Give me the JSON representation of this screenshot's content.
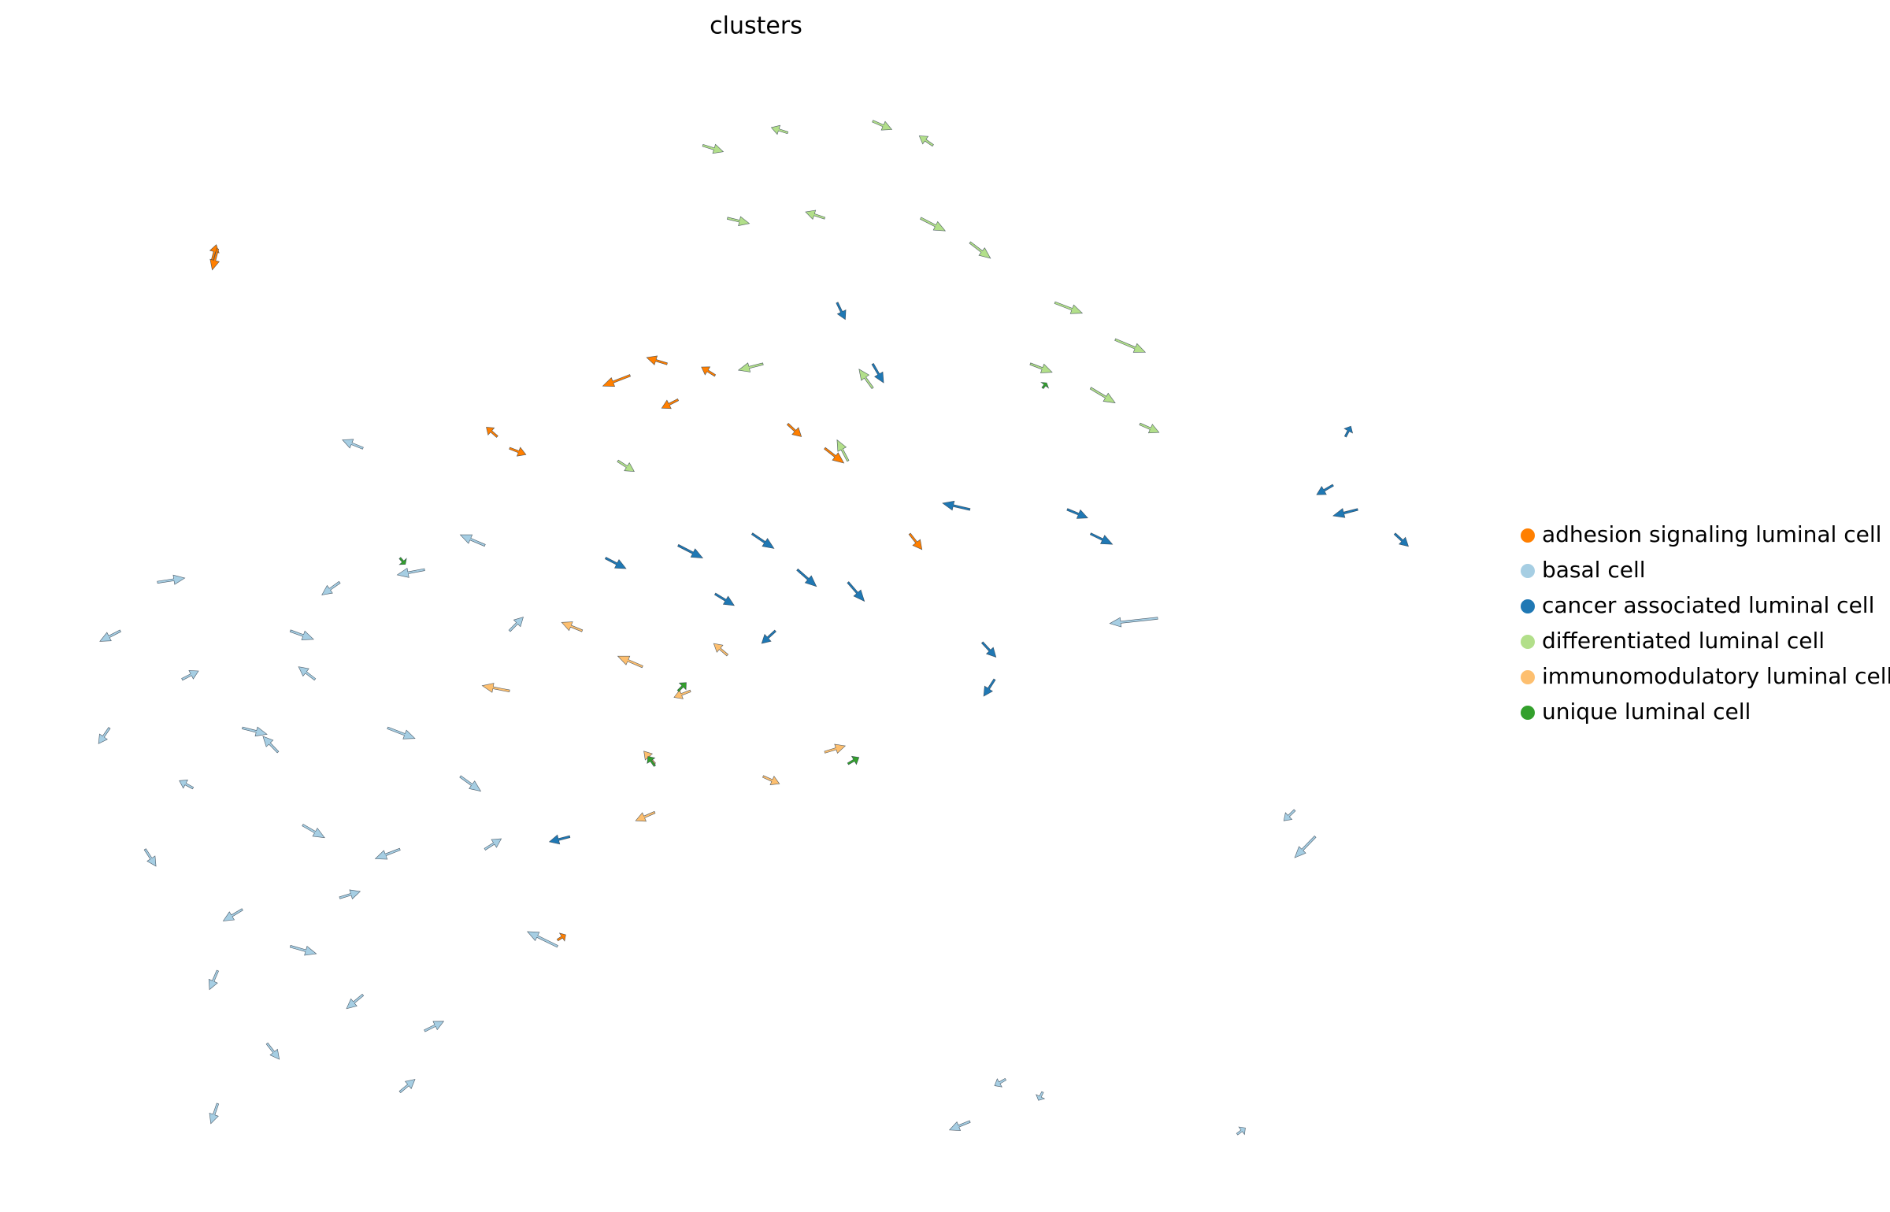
{
  "chart_data": {
    "type": "quiver",
    "title": "clusters",
    "xlim": [
      0,
      100
    ],
    "ylim": [
      0,
      100
    ],
    "legend": "right",
    "series": [
      {
        "name": "adhesion signaling luminal cell",
        "color": "#ff7f00",
        "x": [
          10.2,
          10.6,
          40.7,
          43.4,
          44.2,
          31.0,
          31.9,
          52.2,
          54.9,
          61.1,
          35.4,
          46.9
        ],
        "y": [
          84.5,
          85.6,
          73.6,
          74.7,
          71.3,
          67.8,
          66.7,
          69.0,
          66.7,
          58.6,
          20.1,
          73.6
        ],
        "dx": [
          0.3,
          -0.4,
          -2.0,
          -1.5,
          -1.2,
          -0.8,
          1.2,
          1.0,
          1.4,
          0.9,
          0.6,
          -1.0
        ],
        "dy": [
          1.5,
          -2.0,
          -1.0,
          0.6,
          -0.8,
          0.9,
          -0.6,
          -1.2,
          -1.4,
          -1.5,
          0.5,
          0.8
        ]
      },
      {
        "name": "basal cell",
        "color": "#a6cee3",
        "x": [
          3.5,
          8.0,
          2.7,
          12.4,
          17.7,
          23.0,
          28.3,
          8.8,
          16.8,
          23.9,
          30.1,
          5.3,
          12.4,
          19.5,
          10.6,
          15.9,
          21.2,
          25.7,
          14.2,
          10.6,
          23.9,
          35.4,
          21.2,
          25.7,
          30.1,
          31.9,
          6.2,
          19.5,
          15.9,
          15.0,
          79.2,
          90.7,
          89.2,
          65.5,
          68.1,
          85.0,
          70.8
        ],
        "y": [
          49.4,
          44.8,
          40.2,
          40.2,
          44.8,
          40.2,
          35.6,
          34.5,
          31.0,
          28.7,
          28.7,
          28.7,
          23.0,
          24.1,
          17.2,
          19.5,
          14.9,
          11.5,
          10.3,
          4.6,
          5.7,
          19.5,
          66.7,
          55.2,
          57.5,
          49.4,
          54.0,
          54.0,
          49.4,
          37.9,
          50.6,
          29.9,
          32.4,
          2.9,
          6.9,
          1.7,
          5.7
        ],
        "dx": [
          -1.5,
          1.2,
          -0.8,
          1.8,
          -1.2,
          2.0,
          1.5,
          -1.0,
          1.6,
          -1.8,
          1.2,
          0.8,
          -1.4,
          1.5,
          -0.6,
          1.9,
          -1.2,
          1.4,
          0.9,
          -0.5,
          1.1,
          -2.2,
          -1.5,
          -2.0,
          -1.8,
          1.0,
          2.0,
          -1.3,
          1.7,
          -1.1,
          -3.5,
          -1.5,
          -0.8,
          -1.5,
          -0.8,
          0.6,
          -0.3
        ],
        "dy": [
          -1.0,
          0.8,
          -1.5,
          -0.6,
          1.2,
          -1.0,
          -1.4,
          0.7,
          -1.2,
          -0.9,
          1.0,
          -1.6,
          -1.1,
          0.6,
          -1.8,
          -0.7,
          -1.3,
          0.9,
          -1.5,
          -1.9,
          1.2,
          1.4,
          0.8,
          -0.5,
          1.0,
          1.3,
          0.4,
          -1.2,
          -0.8,
          1.5,
          -0.5,
          -2.0,
          -1.0,
          -0.8,
          -0.6,
          0.6,
          -0.8
        ]
      },
      {
        "name": "cancer associated luminal cell",
        "color": "#1f78b4",
        "x": [
          38.9,
          44.2,
          49.6,
          52.9,
          56.6,
          51.3,
          55.8,
          58.4,
          65.5,
          72.6,
          74.3,
          66.4,
          67.3,
          92.9,
          93.8,
          96.5,
          92.0,
          36.3,
          46.9
        ],
        "y": [
          56.3,
          57.5,
          58.6,
          55.2,
          54.0,
          49.4,
          80.5,
          74.7,
          60.9,
          60.9,
          58.6,
          48.3,
          44.8,
          67.8,
          60.9,
          58.6,
          63.2,
          29.9,
          52.9
        ],
        "dx": [
          1.5,
          1.8,
          1.6,
          1.4,
          1.2,
          -1.0,
          0.6,
          0.8,
          -2.0,
          1.5,
          1.6,
          1.0,
          -0.8,
          0.4,
          -1.8,
          1.0,
          -1.2,
          -1.5,
          1.4
        ],
        "dy": [
          -1.0,
          -1.2,
          -1.4,
          -1.6,
          -1.8,
          -1.2,
          -1.6,
          -1.8,
          0.6,
          -0.8,
          -1.0,
          -1.4,
          -1.6,
          1.0,
          -0.6,
          -1.2,
          -0.9,
          -0.5,
          -1.1
        ]
      },
      {
        "name": "differentiated luminal cell",
        "color": "#b2df8a",
        "x": [
          46.0,
          52.2,
          58.4,
          62.8,
          47.8,
          54.9,
          61.9,
          65.5,
          71.7,
          76.1,
          74.3,
          69.9,
          58.4,
          56.6,
          39.8,
          50.4,
          77.9
        ],
        "y": [
          95.4,
          96.6,
          97.7,
          95.4,
          88.5,
          88.5,
          88.5,
          86.2,
          80.5,
          77.0,
          72.4,
          74.7,
          72.4,
          65.5,
          65.5,
          74.7,
          69.0
        ],
        "dx": [
          1.5,
          -1.2,
          1.4,
          -1.0,
          1.6,
          -1.4,
          1.8,
          1.5,
          2.0,
          2.2,
          1.8,
          1.6,
          -1.0,
          -0.8,
          1.2,
          -1.8,
          1.4
        ],
        "dy": [
          -0.6,
          0.5,
          -0.8,
          0.9,
          -0.5,
          0.6,
          -1.2,
          -1.5,
          -1.0,
          -1.2,
          -1.4,
          -0.8,
          1.8,
          2.0,
          -1.0,
          -0.6,
          -0.8
        ]
      },
      {
        "name": "immunomodulatory luminal cell",
        "color": "#fdbf6f",
        "x": [
          37.2,
          41.6,
          45.1,
          42.5,
          42.5,
          50.4,
          54.9,
          31.9,
          47.8
        ],
        "y": [
          49.4,
          46.0,
          43.7,
          36.8,
          32.2,
          35.6,
          37.9,
          43.7,
          47.1
        ],
        "dx": [
          -1.5,
          -1.8,
          -1.2,
          -0.8,
          -1.4,
          1.2,
          1.5,
          -2.0,
          -1.0
        ],
        "dy": [
          0.8,
          1.0,
          -0.6,
          1.2,
          -0.8,
          -0.7,
          0.6,
          0.5,
          1.1
        ]
      },
      {
        "name": "unique luminal cell",
        "color": "#33a02c",
        "x": [
          44.2,
          56.6,
          42.5,
          23.9,
          70.8
        ],
        "y": [
          43.7,
          36.8,
          36.6,
          56.3,
          72.4
        ],
        "dx": [
          0.6,
          0.8,
          -0.5,
          0.4,
          0.3
        ],
        "dy": [
          0.8,
          0.6,
          0.9,
          -0.6,
          0.5
        ]
      }
    ]
  }
}
